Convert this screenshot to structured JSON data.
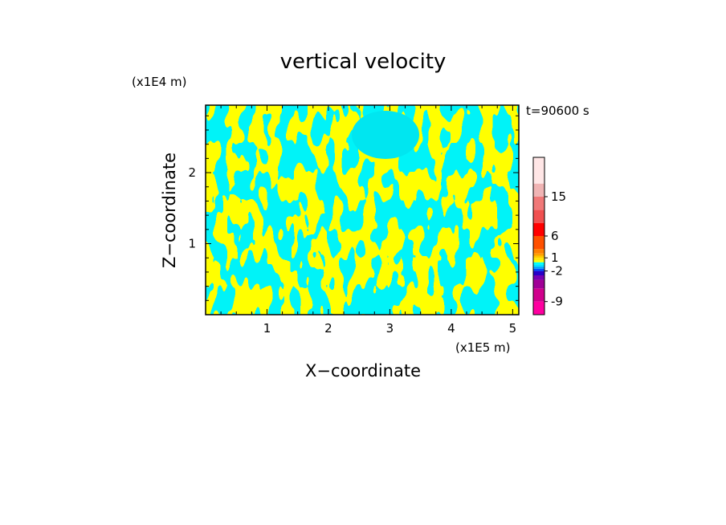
{
  "chart_data": {
    "type": "heatmap",
    "title": "vertical velocity",
    "xlabel": "X−coordinate",
    "ylabel": "Z−coordinate",
    "x_unit": "(x1E5 m)",
    "y_unit": "(x1E4 m)",
    "time_label": "t=90600 s",
    "xlim": [
      0,
      5.1
    ],
    "ylim": [
      0,
      2.95
    ],
    "x_ticks": [
      1,
      2,
      3,
      4,
      5
    ],
    "y_ticks": [
      1,
      2
    ],
    "colorbar": {
      "levels": [
        -12,
        -9,
        -6,
        -4,
        -3,
        -2,
        -1.5,
        -1,
        -0.5,
        0,
        0.5,
        1,
        1.5,
        2,
        3,
        6,
        9,
        12,
        15,
        18,
        24
      ],
      "colors": [
        "#ff00a0",
        "#d0008c",
        "#a00096",
        "#7800b4",
        "#2800c8",
        "#0050ff",
        "#00a0ff",
        "#00e6ff",
        "#00ffff",
        "#ffff00",
        "#ffe600",
        "#ffc800",
        "#ffa000",
        "#ff8000",
        "#ff5000",
        "#ff0000",
        "#f05050",
        "#f07878",
        "#f0b4b4",
        "#ffe6e6"
      ],
      "tick_labels": [
        "-9",
        "-2",
        "1",
        "6",
        "15"
      ],
      "tick_values": [
        -9,
        -2,
        1,
        6,
        15
      ]
    },
    "legend_position": "right",
    "dominant_colors": {
      "positive": "#ffff00",
      "negative": "#00ffff"
    }
  }
}
